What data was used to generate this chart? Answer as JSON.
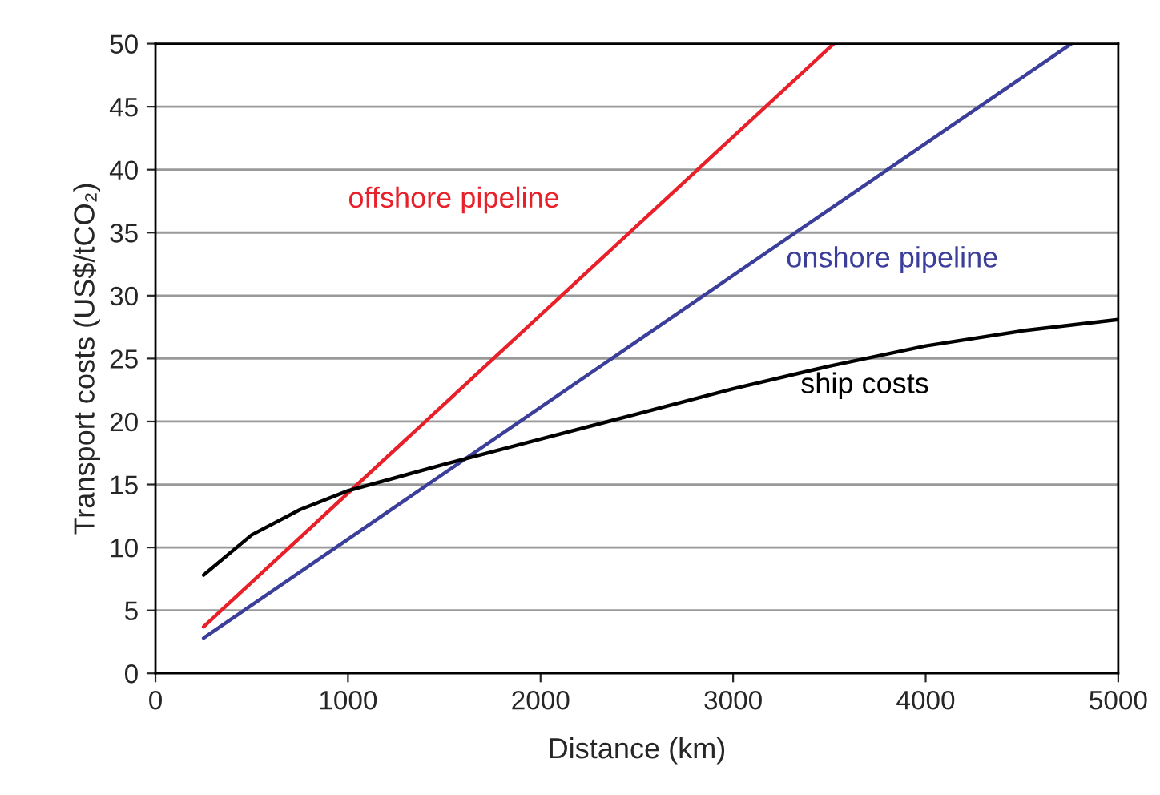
{
  "chart_data": {
    "type": "line",
    "xlabel": "Distance (km)",
    "ylabel": "Transport costs (US$/tCO₂)",
    "xlim": [
      0,
      5000
    ],
    "xticks": [
      0,
      1000,
      2000,
      3000,
      4000,
      5000
    ],
    "ylim": [
      0,
      50
    ],
    "yticks": [
      0,
      5,
      10,
      15,
      20,
      25,
      30,
      35,
      40,
      45,
      50
    ],
    "grid": "y",
    "legend": false,
    "series": [
      {
        "name": "offshore pipeline",
        "color": "#e8202a",
        "x": [
          250,
          3522
        ],
        "values": [
          3.7,
          50
        ]
      },
      {
        "name": "onshore pipeline",
        "color": "#3b3f9a",
        "x": [
          250,
          4756
        ],
        "values": [
          2.8,
          50
        ]
      },
      {
        "name": "ship costs",
        "color": "#000000",
        "x": [
          250,
          500,
          750,
          1000,
          1500,
          2000,
          2500,
          3000,
          3500,
          4000,
          4500,
          5000
        ],
        "values": [
          7.8,
          11,
          13,
          14.5,
          16.6,
          18.6,
          20.6,
          22.6,
          24.4,
          26,
          27.2,
          28.1
        ]
      }
    ]
  }
}
